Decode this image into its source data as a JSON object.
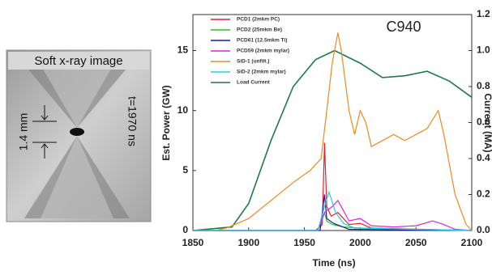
{
  "image": {
    "title": "Soft x-ray image",
    "scale": "1.4 mm",
    "time": "t=1970 ns"
  },
  "chart_data": {
    "type": "line",
    "annotation": "C940",
    "x_label": "Time (ns)",
    "y_label": "Est. Power (GW)",
    "y2_label": "Current (MA)",
    "xlim": [
      1850,
      2100
    ],
    "xticks": [
      1850,
      1900,
      1950,
      2000,
      2050,
      2100
    ],
    "ylim": [
      0,
      18
    ],
    "yticks": [
      0,
      5,
      10,
      15
    ],
    "y2lim": [
      0,
      1.2
    ],
    "y2ticks": [
      {
        "value": 0,
        "label": "0.0"
      },
      0.2,
      0.4,
      0.6,
      0.8,
      {
        "value": 1,
        "label": "1.0"
      },
      1.2
    ],
    "legend": "upper left",
    "series": [
      {
        "name": "PCD1 (2mkm PC)",
        "color": "#e8202a",
        "x": [
          1850,
          1960,
          1966,
          1968,
          1970,
          1974,
          1980,
          1990,
          2000,
          2010,
          2100
        ],
        "values": [
          0,
          0,
          0.5,
          7.3,
          2,
          1.2,
          1.5,
          0.5,
          0.6,
          0.2,
          0
        ]
      },
      {
        "name": "PCD2 (25mkm Be)",
        "color": "#22c822",
        "x": [
          1850,
          1962,
          1968,
          1970,
          1975,
          1985,
          2000,
          2100
        ],
        "values": [
          0,
          0,
          1.5,
          0.8,
          0.5,
          0.3,
          0.2,
          0
        ]
      },
      {
        "name": "PCD61 (12.5mkm Ti)",
        "color": "#1a1aa8",
        "x": [
          1850,
          1964,
          1968,
          1970,
          1976,
          1990,
          2100
        ],
        "values": [
          0,
          0,
          3,
          1,
          0.6,
          0.1,
          0
        ]
      },
      {
        "name": "PCD59 (2mkm mylar)",
        "color": "#e020e0",
        "x": [
          1850,
          1962,
          1968,
          1975,
          1980,
          1990,
          2000,
          2010,
          2030,
          2050,
          2065,
          2075,
          2085,
          2100
        ],
        "values": [
          0,
          0,
          1.5,
          2,
          2.5,
          0.8,
          1,
          0.4,
          0.3,
          0.4,
          0.8,
          0.5,
          0.1,
          0
        ]
      },
      {
        "name": "SiD-1 (unfilt.)",
        "color": "#f08a1c",
        "x": [
          1850,
          1870,
          1880,
          1900,
          1920,
          1940,
          1955,
          1965,
          1970,
          1975,
          1980,
          1983,
          1990,
          1995,
          2000,
          2005,
          2010,
          2020,
          2030,
          2040,
          2050,
          2060,
          2070,
          2075,
          2085,
          2095,
          2100
        ],
        "values": [
          0,
          0,
          0.2,
          1,
          2.5,
          4,
          5,
          6,
          10,
          14,
          16.5,
          15,
          10,
          8,
          10,
          9,
          7,
          7.5,
          8,
          7.5,
          8,
          8.5,
          10,
          8,
          3,
          0.5,
          0
        ]
      },
      {
        "name": "SiD-2 (2mkm mylar)",
        "color": "#20d0e0",
        "x": [
          1850,
          1962,
          1968,
          1972,
          1978,
          1985,
          1995,
          2100
        ],
        "values": [
          0,
          0,
          2,
          3.2,
          1.5,
          0.6,
          0.2,
          0
        ]
      },
      {
        "name": "Load Current",
        "color": "#1f7a4a",
        "axis": "y2",
        "x": [
          1850,
          1885,
          1900,
          1920,
          1940,
          1960,
          1977,
          2000,
          2020,
          2040,
          2060,
          2080,
          2100
        ],
        "values": [
          0,
          0.02,
          0.15,
          0.5,
          0.8,
          0.95,
          1,
          0.93,
          0.85,
          0.86,
          0.885,
          0.83,
          0.74
        ]
      }
    ]
  }
}
